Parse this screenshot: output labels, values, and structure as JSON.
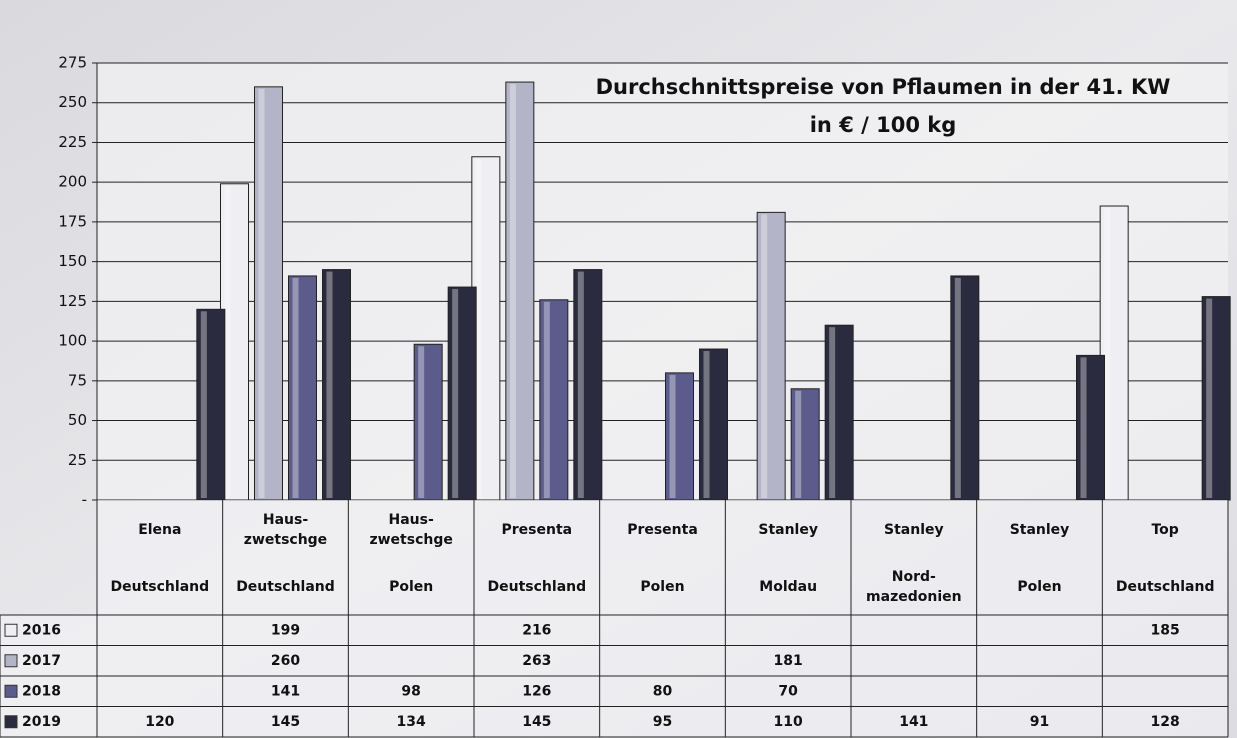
{
  "chart_data": {
    "type": "bar",
    "title": "Durchschnittspreise von Pflaumen in der 41. KW",
    "subtitle": "in € / 100 kg",
    "categories": [
      {
        "variety": [
          "Elena"
        ],
        "origin": [
          "Deutschland"
        ]
      },
      {
        "variety": [
          "Haus-",
          "zwetschge"
        ],
        "origin": [
          "Deutschland"
        ]
      },
      {
        "variety": [
          "Haus-",
          "zwetschge"
        ],
        "origin": [
          "Polen"
        ]
      },
      {
        "variety": [
          "Presenta"
        ],
        "origin": [
          "Deutschland"
        ]
      },
      {
        "variety": [
          "Presenta"
        ],
        "origin": [
          "Polen"
        ]
      },
      {
        "variety": [
          "Stanley"
        ],
        "origin": [
          "Moldau"
        ]
      },
      {
        "variety": [
          "Stanley"
        ],
        "origin": [
          "Nord-",
          "mazedonien"
        ]
      },
      {
        "variety": [
          "Stanley"
        ],
        "origin": [
          "Polen"
        ]
      },
      {
        "variety": [
          "Top"
        ],
        "origin": [
          "Deutschland"
        ]
      }
    ],
    "series": [
      {
        "name": "2016",
        "color": "#eeeef3",
        "values": [
          null,
          199,
          null,
          216,
          null,
          null,
          null,
          null,
          185
        ]
      },
      {
        "name": "2017",
        "color": "#b4b4c8",
        "values": [
          null,
          260,
          null,
          263,
          null,
          181,
          null,
          null,
          null
        ]
      },
      {
        "name": "2018",
        "color": "#5c5c8c",
        "values": [
          null,
          141,
          98,
          126,
          80,
          70,
          null,
          null,
          null
        ]
      },
      {
        "name": "2019",
        "color": "#2b2b40",
        "values": [
          120,
          145,
          134,
          145,
          95,
          110,
          141,
          91,
          128
        ]
      }
    ],
    "ylim": [
      0,
      275
    ],
    "yticks": [
      {
        "value": 0,
        "label": "-"
      },
      25,
      50,
      75,
      100,
      125,
      150,
      175,
      200,
      225,
      250,
      275
    ],
    "grid": true
  }
}
